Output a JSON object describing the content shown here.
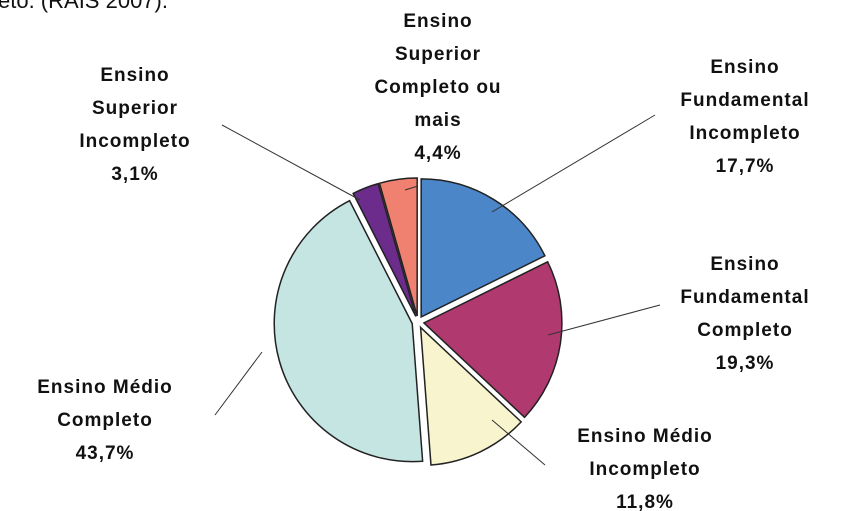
{
  "caption": "eto. (RAIS 2007).",
  "chart_data": {
    "type": "pie",
    "categories": [
      "Ensino Fundamental Incompleto",
      "Ensino Fundamental Completo",
      "Ensino Médio Incompleto",
      "Ensino Médio Completo",
      "Ensino Superior Incompleto",
      "Ensino Superior Completo ou mais"
    ],
    "values": [
      17.7,
      19.3,
      11.8,
      43.7,
      3.1,
      4.4
    ],
    "value_labels": [
      "17,7%",
      "19,3%",
      "11,8%",
      "43,7%",
      "3,1%",
      "4,4%"
    ],
    "colors": [
      "#4a86c8",
      "#b0396f",
      "#f8f4cd",
      "#c4e5e2",
      "#6b2c8c",
      "#f0806f"
    ]
  }
}
